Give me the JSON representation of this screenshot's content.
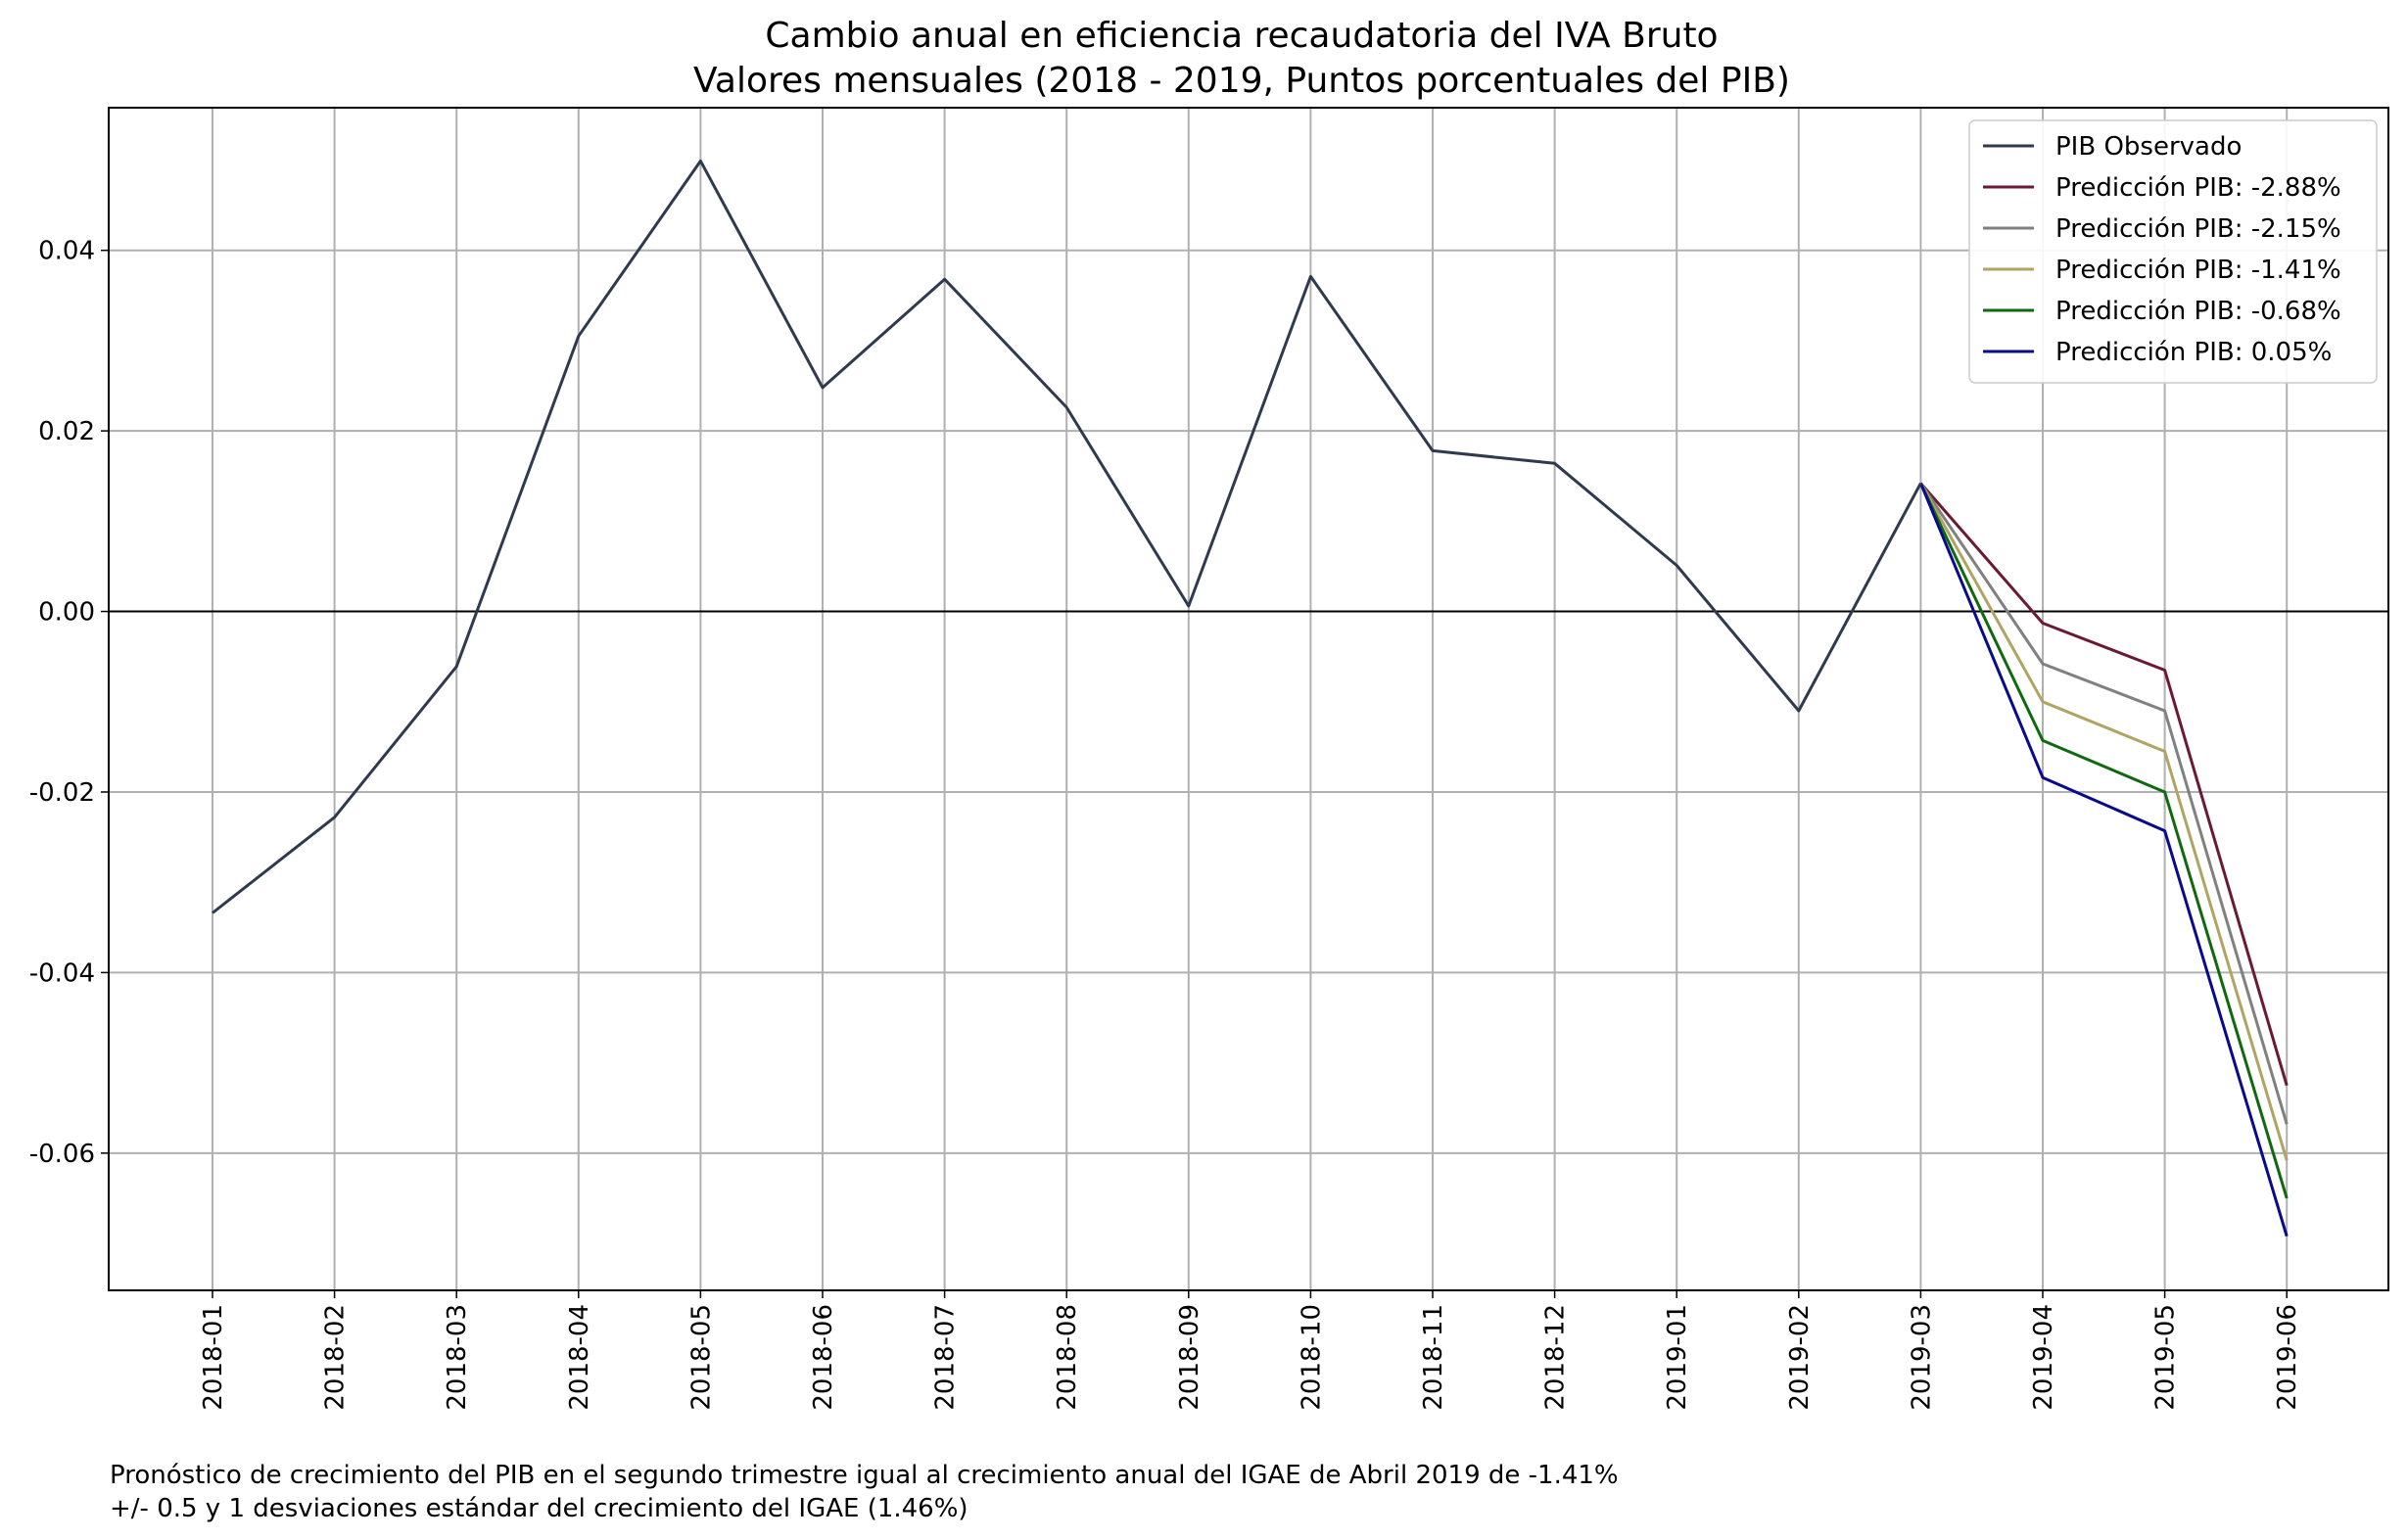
{
  "chart_data": {
    "type": "line",
    "title": "Cambio anual en eficiencia recaudatoria del IVA Bruto",
    "subtitle": "Valores mensuales (2018 - 2019, Puntos porcentuales del PIB)",
    "xlabel": "",
    "ylabel": "",
    "categories": [
      "2018-01",
      "2018-02",
      "2018-03",
      "2018-04",
      "2018-05",
      "2018-06",
      "2018-07",
      "2018-08",
      "2018-09",
      "2018-10",
      "2018-11",
      "2018-12",
      "2019-01",
      "2019-02",
      "2019-03",
      "2019-04",
      "2019-05",
      "2019-06"
    ],
    "y_ticks": [
      -0.06,
      -0.04,
      -0.02,
      0.0,
      0.02,
      0.04
    ],
    "y_tick_labels": [
      "-0.06",
      "-0.04",
      "-0.02",
      "0.00",
      "0.02",
      "0.04"
    ],
    "ylim": [
      -0.0752,
      0.0558
    ],
    "grid": true,
    "zero_line": true,
    "legend_position": "top-right",
    "series": [
      {
        "name": "PIB Observado",
        "color": "#2f3a4f",
        "values": [
          -0.0334,
          -0.0228,
          -0.0061,
          0.0305,
          0.0499,
          0.0248,
          0.0368,
          0.0226,
          0.0006,
          0.0371,
          0.0178,
          0.0164,
          0.0051,
          -0.011,
          0.0142,
          null,
          null,
          null
        ]
      },
      {
        "name": "Predicción PIB: -2.88%",
        "color": "#6b1a33",
        "values": [
          null,
          null,
          null,
          null,
          null,
          null,
          null,
          null,
          null,
          null,
          null,
          null,
          null,
          null,
          0.0142,
          -0.0013,
          -0.0065,
          -0.0525
        ]
      },
      {
        "name": "Predicción PIB: -2.15%",
        "color": "#808080",
        "values": [
          null,
          null,
          null,
          null,
          null,
          null,
          null,
          null,
          null,
          null,
          null,
          null,
          null,
          null,
          0.0142,
          -0.0058,
          -0.011,
          -0.0568
        ]
      },
      {
        "name": "Predicción PIB: -1.41%",
        "color": "#b0a462",
        "values": [
          null,
          null,
          null,
          null,
          null,
          null,
          null,
          null,
          null,
          null,
          null,
          null,
          null,
          null,
          0.0142,
          -0.01,
          -0.0155,
          -0.0608
        ]
      },
      {
        "name": "Predicción PIB: -0.68%",
        "color": "#0f6a0f",
        "values": [
          null,
          null,
          null,
          null,
          null,
          null,
          null,
          null,
          null,
          null,
          null,
          null,
          null,
          null,
          0.0142,
          -0.0143,
          -0.02,
          -0.065
        ]
      },
      {
        "name": "Predicción PIB: 0.05%",
        "color": "#0a0a8c",
        "values": [
          null,
          null,
          null,
          null,
          null,
          null,
          null,
          null,
          null,
          null,
          null,
          null,
          null,
          null,
          0.0142,
          -0.0184,
          -0.0243,
          -0.0692
        ]
      }
    ],
    "footnote": [
      "Pronóstico de crecimiento del PIB en el segundo trimestre igual al crecimiento anual del IGAE de Abril 2019 de -1.41%",
      "+/- 0.5 y 1 desviaciones estándar del crecimiento del IGAE (1.46%)"
    ]
  }
}
